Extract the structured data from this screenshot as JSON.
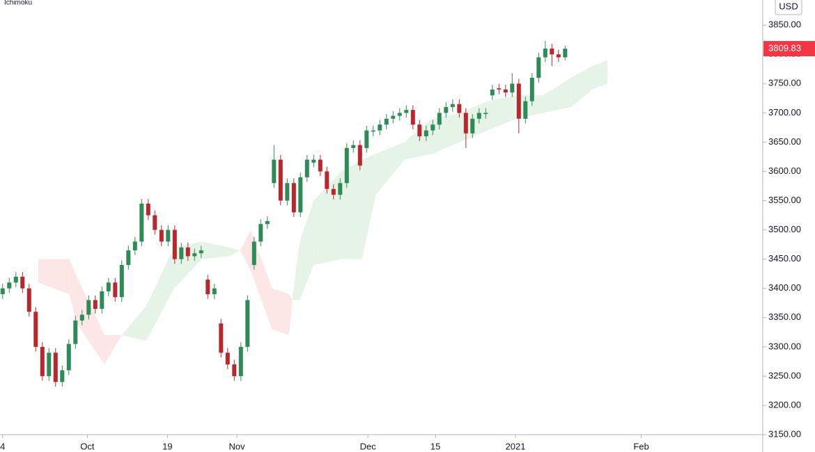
{
  "chart_data": {
    "type": "candlestick",
    "indicator": "Ichimoku",
    "currency": "USD",
    "up_color": "#2e8b57",
    "down_color": "#b8272c",
    "cloud_up_color": "#e6f4e8",
    "cloud_down_color": "#fde6e6",
    "open": [
      3390,
      3400,
      3410,
      3420,
      3400,
      3360,
      3300,
      3250,
      3290,
      3240,
      3260,
      3305,
      3345,
      3355,
      3380,
      3365,
      3395,
      3410,
      3385,
      3440,
      3465,
      3480,
      3545,
      3525,
      3500,
      3480,
      3500,
      3450,
      3470,
      3455,
      3460,
      3415,
      3390,
      3340,
      3290,
      3270,
      3250,
      3300,
      3440,
      3480,
      3510,
      3580,
      3620,
      3550,
      3580,
      3530,
      3590,
      3615,
      3620,
      3600,
      3570,
      3560,
      3580,
      3640,
      3645,
      3640,
      3668,
      3670,
      3680,
      3690,
      3695,
      3700,
      3705,
      3680,
      3660,
      3670,
      3680,
      3700,
      3710,
      3715,
      3700,
      3665,
      3690,
      3698,
      3730,
      3742,
      3740,
      3735,
      3750,
      3690,
      3720,
      3760,
      3795,
      3810,
      3800,
      3795
    ],
    "high": [
      3408,
      3418,
      3428,
      3428,
      3408,
      3368,
      3308,
      3298,
      3298,
      3268,
      3313,
      3353,
      3363,
      3388,
      3388,
      3403,
      3418,
      3418,
      3448,
      3473,
      3488,
      3553,
      3553,
      3533,
      3508,
      3508,
      3508,
      3478,
      3478,
      3468,
      3473,
      3423,
      3408,
      3348,
      3298,
      3278,
      3308,
      3388,
      3488,
      3518,
      3523,
      3645,
      3628,
      3588,
      3588,
      3598,
      3628,
      3628,
      3628,
      3608,
      3578,
      3588,
      3648,
      3653,
      3653,
      3678,
      3678,
      3688,
      3698,
      3703,
      3708,
      3713,
      3713,
      3688,
      3678,
      3688,
      3708,
      3718,
      3723,
      3723,
      3708,
      3698,
      3708,
      3708,
      3748,
      3750,
      3748,
      3768,
      3758,
      3728,
      3768,
      3803,
      3823,
      3818,
      3808,
      3815
    ],
    "low": [
      3382,
      3392,
      3402,
      3392,
      3352,
      3292,
      3242,
      3242,
      3232,
      3232,
      3252,
      3297,
      3337,
      3347,
      3357,
      3357,
      3387,
      3377,
      3377,
      3432,
      3457,
      3472,
      3517,
      3492,
      3472,
      3472,
      3442,
      3442,
      3447,
      3447,
      3452,
      3382,
      3382,
      3282,
      3262,
      3242,
      3242,
      3292,
      3432,
      3472,
      3502,
      3572,
      3542,
      3542,
      3522,
      3522,
      3582,
      3607,
      3592,
      3562,
      3552,
      3552,
      3572,
      3632,
      3602,
      3632,
      3660,
      3662,
      3672,
      3682,
      3687,
      3692,
      3672,
      3652,
      3652,
      3662,
      3672,
      3692,
      3702,
      3692,
      3640,
      3657,
      3682,
      3690,
      3722,
      3732,
      3727,
      3727,
      3665,
      3682,
      3712,
      3752,
      3787,
      3780,
      3787,
      3790
    ],
    "close": [
      3400,
      3410,
      3420,
      3400,
      3360,
      3300,
      3250,
      3290,
      3240,
      3260,
      3305,
      3345,
      3355,
      3380,
      3365,
      3395,
      3410,
      3385,
      3440,
      3465,
      3480,
      3545,
      3525,
      3500,
      3480,
      3500,
      3450,
      3470,
      3455,
      3460,
      3465,
      3390,
      3400,
      3290,
      3270,
      3250,
      3300,
      3380,
      3480,
      3510,
      3515,
      3620,
      3550,
      3580,
      3530,
      3590,
      3620,
      3620,
      3600,
      3570,
      3560,
      3580,
      3640,
      3645,
      3610,
      3670,
      3670,
      3680,
      3690,
      3695,
      3700,
      3705,
      3680,
      3660,
      3670,
      3680,
      3700,
      3710,
      3715,
      3700,
      3665,
      3690,
      3700,
      3700,
      3740,
      3740,
      3735,
      3750,
      3690,
      3720,
      3760,
      3795,
      3810,
      3800,
      3795,
      3809.83
    ],
    "cloud": {
      "x": [
        5.8,
        10.5,
        11.6,
        15.8,
        18.4,
        22.1,
        26.3,
        30.5,
        34.7,
        36.3,
        37.9,
        41.1,
        43.7,
        44.2,
        45.3,
        47.4,
        51.6,
        54.7,
        56.8,
        61.1,
        65.3,
        69.5,
        73.7,
        77.9,
        82.1,
        86.3,
        89.5,
        91.8
      ],
      "span_a": [
        3410,
        3390,
        3340,
        3270,
        3320,
        3370,
        3470,
        3480,
        3470,
        3465,
        3430,
        3330,
        3320,
        3385,
        3480,
        3550,
        3600,
        3620,
        3630,
        3650,
        3690,
        3700,
        3720,
        3730,
        3730,
        3760,
        3780,
        3790
      ],
      "span_b": [
        3450,
        3450,
        3420,
        3320,
        3320,
        3310,
        3400,
        3450,
        3455,
        3465,
        3500,
        3400,
        3390,
        3380,
        3380,
        3440,
        3450,
        3450,
        3560,
        3620,
        3630,
        3650,
        3670,
        3690,
        3700,
        3710,
        3740,
        3750
      ]
    },
    "xlim": [
      0,
      115
    ],
    "xticks": [
      {
        "value": 0.4,
        "label": "4"
      },
      {
        "value": 13.2,
        "label": "Oct"
      },
      {
        "value": 25.3,
        "label": "19"
      },
      {
        "value": 35.8,
        "label": "Nov"
      },
      {
        "value": 55.6,
        "label": "Dec"
      },
      {
        "value": 65.8,
        "label": "15"
      },
      {
        "value": 77.9,
        "label": "2021"
      },
      {
        "value": 96.9,
        "label": "Feb"
      }
    ],
    "ylim": [
      3150,
      3893
    ],
    "yticks": [
      {
        "value": 3150,
        "label": "3150.00"
      },
      {
        "value": 3200,
        "label": "3200.00"
      },
      {
        "value": 3250,
        "label": "3250.00"
      },
      {
        "value": 3300,
        "label": "3300.00"
      },
      {
        "value": 3350,
        "label": "3350.00"
      },
      {
        "value": 3400,
        "label": "3400.00"
      },
      {
        "value": 3450,
        "label": "3450.00"
      },
      {
        "value": 3500,
        "label": "3500.00"
      },
      {
        "value": 3550,
        "label": "3550.00"
      },
      {
        "value": 3600,
        "label": "3600.00"
      },
      {
        "value": 3650,
        "label": "3650.00"
      },
      {
        "value": 3700,
        "label": "3700.00"
      },
      {
        "value": 3750,
        "label": "3750.00"
      },
      {
        "value": 3800,
        "label": "3800.00"
      },
      {
        "value": 3850,
        "label": "3850.00"
      }
    ]
  }
}
